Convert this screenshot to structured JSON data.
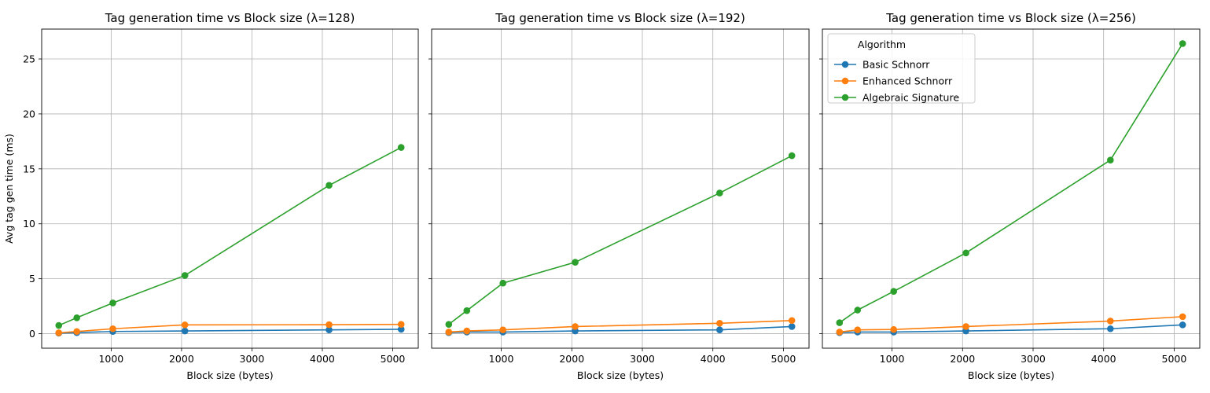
{
  "colors": {
    "Basic Schnorr": "#1f77b4",
    "Enhanced Schnorr": "#ff7f0e",
    "Algebraic Signature": "#2ca02c",
    "grid": "#b0b0b0",
    "frame": "#000000"
  },
  "chart_data": [
    {
      "type": "line",
      "title": "Tag generation time vs Block size (λ=128)",
      "xlabel": "Block size (bytes)",
      "ylabel": "Avg tag gen time (ms)",
      "x": [
        256,
        512,
        1024,
        2048,
        4096,
        5120
      ],
      "xlim": [
        13,
        5363
      ],
      "ylim": [
        -1.32,
        27.72
      ],
      "xticks": [
        1000,
        2000,
        3000,
        4000,
        5000
      ],
      "yticks": [
        0,
        5,
        10,
        15,
        20,
        25
      ],
      "grid": true,
      "legend": null,
      "series": [
        {
          "name": "Basic Schnorr",
          "values": [
            0.05,
            0.1,
            0.2,
            0.25,
            0.35,
            0.4
          ]
        },
        {
          "name": "Enhanced Schnorr",
          "values": [
            0.08,
            0.2,
            0.45,
            0.8,
            0.82,
            0.85
          ]
        },
        {
          "name": "Algebraic Signature",
          "values": [
            0.75,
            1.45,
            2.8,
            5.3,
            13.5,
            16.95
          ]
        }
      ]
    },
    {
      "type": "line",
      "title": "Tag generation time vs Block size (λ=192)",
      "xlabel": "Block size (bytes)",
      "ylabel": "",
      "x": [
        256,
        512,
        1024,
        2048,
        4096,
        5120
      ],
      "xlim": [
        13,
        5363
      ],
      "ylim": [
        -1.32,
        27.72
      ],
      "xticks": [
        1000,
        2000,
        3000,
        4000,
        5000
      ],
      "yticks": [
        0,
        5,
        10,
        15,
        20,
        25
      ],
      "grid": true,
      "legend": null,
      "series": [
        {
          "name": "Basic Schnorr",
          "values": [
            0.1,
            0.15,
            0.15,
            0.25,
            0.35,
            0.65
          ]
        },
        {
          "name": "Enhanced Schnorr",
          "values": [
            0.15,
            0.25,
            0.35,
            0.65,
            0.95,
            1.2
          ]
        },
        {
          "name": "Algebraic Signature",
          "values": [
            0.85,
            2.1,
            4.6,
            6.5,
            12.8,
            16.2
          ]
        }
      ]
    },
    {
      "type": "line",
      "title": "Tag generation time vs Block size (λ=256)",
      "xlabel": "Block size (bytes)",
      "ylabel": "",
      "x": [
        256,
        512,
        1024,
        2048,
        4096,
        5120
      ],
      "xlim": [
        13,
        5363
      ],
      "ylim": [
        -1.32,
        27.72
      ],
      "xticks": [
        1000,
        2000,
        3000,
        4000,
        5000
      ],
      "yticks": [
        0,
        5,
        10,
        15,
        20,
        25
      ],
      "grid": true,
      "legend": {
        "title": "Algorithm",
        "placement": "upper-left"
      },
      "series": [
        {
          "name": "Basic Schnorr",
          "values": [
            0.1,
            0.15,
            0.15,
            0.25,
            0.45,
            0.8
          ]
        },
        {
          "name": "Enhanced Schnorr",
          "values": [
            0.15,
            0.35,
            0.38,
            0.65,
            1.15,
            1.55
          ]
        },
        {
          "name": "Algebraic Signature",
          "values": [
            1.0,
            2.15,
            3.85,
            7.35,
            15.8,
            26.4
          ]
        }
      ]
    }
  ]
}
